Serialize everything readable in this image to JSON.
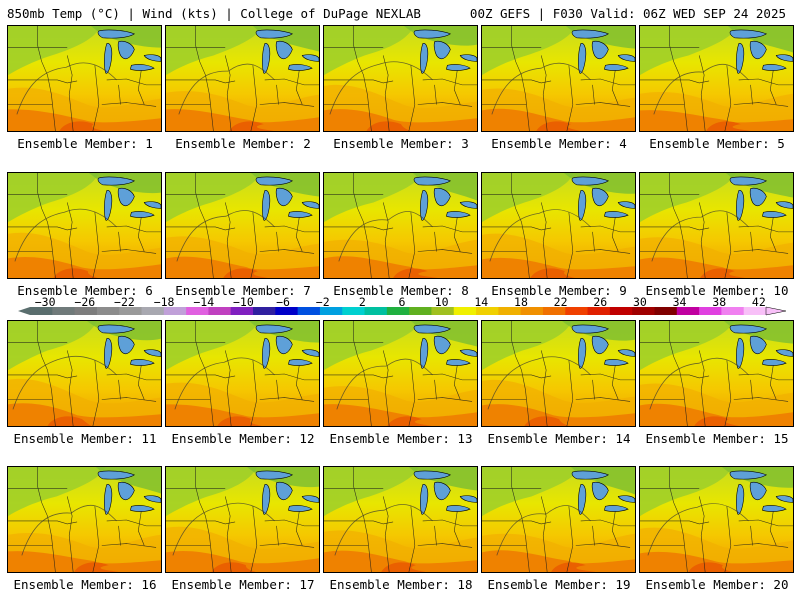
{
  "header": {
    "left": "850mb Temp (°C) | Wind (kts) | College of DuPage NEXLAB",
    "right": "00Z GEFS | F030 Valid: 06Z WED SEP 24 2025"
  },
  "members": [
    {
      "label": "Ensemble Member: 1"
    },
    {
      "label": "Ensemble Member: 2"
    },
    {
      "label": "Ensemble Member: 3"
    },
    {
      "label": "Ensemble Member: 4"
    },
    {
      "label": "Ensemble Member: 5"
    },
    {
      "label": "Ensemble Member: 6"
    },
    {
      "label": "Ensemble Member: 7"
    },
    {
      "label": "Ensemble Member: 8"
    },
    {
      "label": "Ensemble Member: 9"
    },
    {
      "label": "Ensemble Member: 10"
    },
    {
      "label": "Ensemble Member: 11"
    },
    {
      "label": "Ensemble Member: 12"
    },
    {
      "label": "Ensemble Member: 13"
    },
    {
      "label": "Ensemble Member: 14"
    },
    {
      "label": "Ensemble Member: 15"
    },
    {
      "label": "Ensemble Member: 16"
    },
    {
      "label": "Ensemble Member: 17"
    },
    {
      "label": "Ensemble Member: 18"
    },
    {
      "label": "Ensemble Member: 19"
    },
    {
      "label": "Ensemble Member: 20"
    }
  ],
  "colorbar": {
    "tick_labels": [
      "-30",
      "-26",
      "-22",
      "-18",
      "-14",
      "-10",
      "-6",
      "-2",
      "2",
      "6",
      "10",
      "14",
      "18",
      "22",
      "26",
      "30",
      "34",
      "38",
      "42"
    ],
    "colors": [
      "#5a6e6e",
      "#707a7a",
      "#7d7d7d",
      "#8c8c8c",
      "#9a9a9a",
      "#a8a8b0",
      "#c0a0d8",
      "#e060e0",
      "#c040c0",
      "#8020c0",
      "#3020a0",
      "#0000c8",
      "#0050e0",
      "#00a0e0",
      "#00d0d0",
      "#00c0a0",
      "#20b040",
      "#60b020",
      "#a0c020",
      "#f0f000",
      "#f0d000",
      "#f0b000",
      "#f09000",
      "#f07000",
      "#f04000",
      "#e02000",
      "#c00000",
      "#a00000",
      "#800000",
      "#c000a0",
      "#e040e0",
      "#f080f0",
      "#f8c0f8"
    ]
  }
}
